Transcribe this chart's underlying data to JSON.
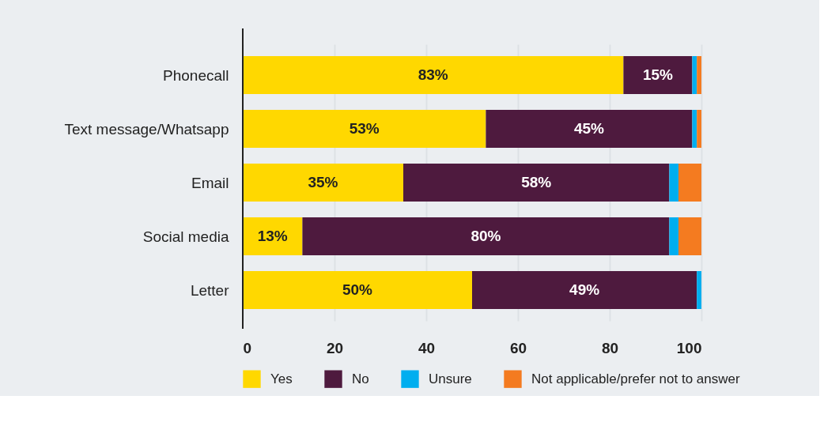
{
  "chart_data": {
    "type": "bar",
    "orientation": "horizontal",
    "stacked": true,
    "categories": [
      "Phonecall",
      "Text message/Whatsapp",
      "Email",
      "Social media",
      "Letter"
    ],
    "series": [
      {
        "name": "Yes",
        "color": "#ffd800",
        "values": [
          83,
          53,
          35,
          13,
          50
        ],
        "value_labels": [
          "83%",
          "53%",
          "35%",
          "13%",
          "50%"
        ]
      },
      {
        "name": "No",
        "color": "#4e1a3e",
        "values": [
          15,
          45,
          58,
          80,
          49
        ],
        "value_labels": [
          "15%",
          "45%",
          "58%",
          "80%",
          "49%"
        ]
      },
      {
        "name": "Unsure",
        "color": "#00aeef",
        "values": [
          1,
          1,
          2,
          2,
          1
        ]
      },
      {
        "name": "Not applicable/prefer not to answer",
        "color": "#f47b20",
        "values": [
          1,
          1,
          5,
          5,
          null
        ]
      }
    ],
    "xlim": [
      0,
      100
    ],
    "xticks": [
      0,
      20,
      40,
      60,
      80,
      100
    ],
    "grid": "x",
    "legend": "bottom"
  }
}
